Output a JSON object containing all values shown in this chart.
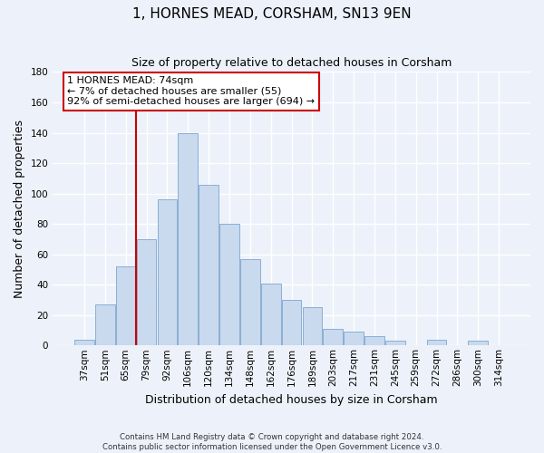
{
  "title": "1, HORNES MEAD, CORSHAM, SN13 9EN",
  "subtitle": "Size of property relative to detached houses in Corsham",
  "xlabel": "Distribution of detached houses by size in Corsham",
  "ylabel": "Number of detached properties",
  "bar_labels": [
    "37sqm",
    "51sqm",
    "65sqm",
    "79sqm",
    "92sqm",
    "106sqm",
    "120sqm",
    "134sqm",
    "148sqm",
    "162sqm",
    "176sqm",
    "189sqm",
    "203sqm",
    "217sqm",
    "231sqm",
    "245sqm",
    "259sqm",
    "272sqm",
    "286sqm",
    "300sqm",
    "314sqm"
  ],
  "bar_values": [
    4,
    27,
    52,
    70,
    96,
    140,
    106,
    80,
    57,
    41,
    30,
    25,
    11,
    9,
    6,
    3,
    0,
    4,
    0,
    3,
    0
  ],
  "bar_color": "#c9d9ee",
  "bar_edge_color": "#8aafd4",
  "vline_x_index": 3,
  "vline_color": "#cc0000",
  "annotation_line1": "1 HORNES MEAD: 74sqm",
  "annotation_line2": "← 7% of detached houses are smaller (55)",
  "annotation_line3": "92% of semi-detached houses are larger (694) →",
  "annotation_box_color": "#ffffff",
  "annotation_box_edge": "#cc0000",
  "ylim": [
    0,
    180
  ],
  "yticks": [
    0,
    20,
    40,
    60,
    80,
    100,
    120,
    140,
    160,
    180
  ],
  "footer": "Contains HM Land Registry data © Crown copyright and database right 2024.\nContains public sector information licensed under the Open Government Licence v3.0.",
  "bg_color": "#edf2fa",
  "grid_color": "#ffffff",
  "title_fontsize": 11,
  "subtitle_fontsize": 9,
  "axis_label_fontsize": 9,
  "tick_fontsize": 7.5
}
